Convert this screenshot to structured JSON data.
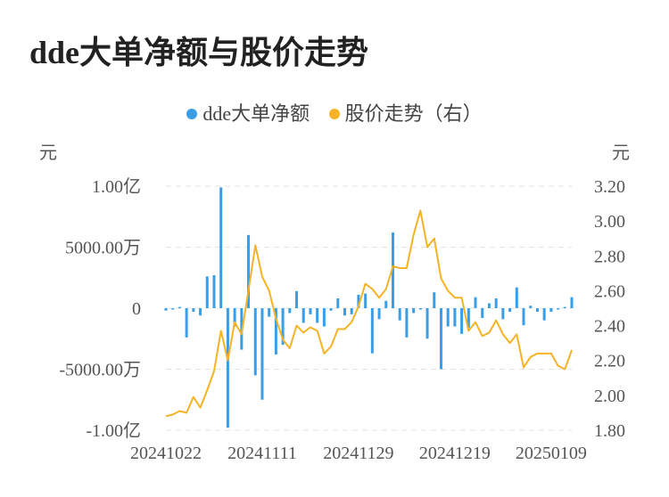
{
  "title": "dde大单净额与股价走势",
  "chart_data": {
    "type": "bar+line",
    "title": "dde大单净额与股价走势",
    "left_unit": "元",
    "right_unit": "元",
    "left_ticks": [
      "1.00亿",
      "5000.00万",
      "0",
      "-5000.00万",
      "-1.00亿"
    ],
    "left_tick_values": [
      100000000,
      50000000,
      0,
      -50000000,
      -100000000
    ],
    "right_ticks": [
      "3.20",
      "3.00",
      "2.80",
      "2.60",
      "2.40",
      "2.20",
      "2.00",
      "1.80"
    ],
    "right_tick_values": [
      3.2,
      3.0,
      2.8,
      2.6,
      2.4,
      2.2,
      2.0,
      1.8
    ],
    "x_labels": [
      "20241022",
      "20241111",
      "20241129",
      "20241219",
      "20250109"
    ],
    "x_label_indices": [
      0,
      14,
      28,
      42,
      56
    ],
    "ylim_left": [
      -100000000,
      100000000
    ],
    "ylim_right": [
      1.8,
      3.2
    ],
    "grid": true,
    "legend_position": "top-center",
    "series": [
      {
        "name": "dde大单净额",
        "type": "bar",
        "axis": "left",
        "color": "#3a9ee6",
        "values": [
          -2000000,
          0,
          1000000,
          -24000000,
          -3000000,
          -6000000,
          26000000,
          27000000,
          99000000,
          -98000000,
          -15000000,
          -34000000,
          60000000,
          -55000000,
          -75000000,
          -7000000,
          -38000000,
          -30000000,
          -4000000,
          14000000,
          -12000000,
          -5000000,
          -12000000,
          -15000000,
          -2000000,
          8000000,
          -6000000,
          -5000000,
          11000000,
          12000000,
          -37000000,
          -9000000,
          6000000,
          62000000,
          -10000000,
          -24000000,
          -4000000,
          0,
          -25000000,
          13000000,
          -50000000,
          -15000000,
          -15000000,
          -21000000,
          -16000000,
          9000000,
          -8000000,
          4000000,
          8000000,
          -9000000,
          -3000000,
          17000000,
          -14000000,
          2000000,
          -3000000,
          -10000000,
          -3000000,
          0,
          1000000,
          9000000
        ]
      },
      {
        "name": "股价走势（右）",
        "type": "line",
        "axis": "right",
        "color": "#f5b325",
        "values": [
          1.88,
          1.89,
          1.91,
          1.9,
          1.99,
          1.93,
          2.03,
          2.14,
          2.37,
          2.2,
          2.42,
          2.35,
          2.6,
          2.86,
          2.68,
          2.6,
          2.44,
          2.32,
          2.27,
          2.4,
          2.36,
          2.39,
          2.37,
          2.24,
          2.28,
          2.38,
          2.38,
          2.42,
          2.51,
          2.64,
          2.61,
          2.56,
          2.61,
          2.74,
          2.73,
          2.73,
          2.92,
          3.06,
          2.85,
          2.9,
          2.67,
          2.6,
          2.56,
          2.56,
          2.37,
          2.42,
          2.34,
          2.36,
          2.43,
          2.35,
          2.3,
          2.35,
          2.16,
          2.22,
          2.24,
          2.24,
          2.24,
          2.17,
          2.15,
          2.26
        ]
      }
    ]
  }
}
